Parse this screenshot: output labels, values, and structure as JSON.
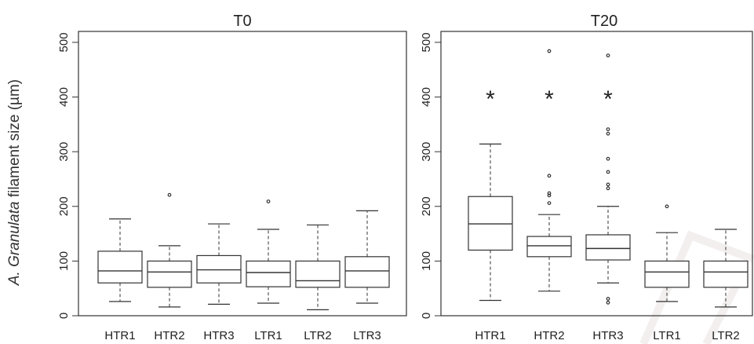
{
  "figure": {
    "ylabel_italic": "A. Granulata",
    "ylabel_rest": " filament size (µm)"
  },
  "chart_data": [
    {
      "type": "box",
      "title": "T0",
      "ylabel": "A. Granulata filament size (µm)",
      "ylim": [
        0,
        520
      ],
      "yticks": [
        0,
        100,
        200,
        300,
        400,
        500
      ],
      "categories": [
        "HTR1",
        "HTR2",
        "HTR3",
        "LTR1",
        "LTR2",
        "LTR3"
      ],
      "boxes": [
        {
          "low": 26,
          "q1": 60,
          "median": 82,
          "q3": 118,
          "high": 177,
          "outliers": [],
          "star": false
        },
        {
          "low": 16,
          "q1": 52,
          "median": 80,
          "q3": 100,
          "high": 128,
          "outliers": [
            221
          ],
          "star": false
        },
        {
          "low": 21,
          "q1": 60,
          "median": 84,
          "q3": 110,
          "high": 168,
          "outliers": [],
          "star": false
        },
        {
          "low": 23,
          "q1": 53,
          "median": 79,
          "q3": 100,
          "high": 158,
          "outliers": [
            209
          ],
          "star": false
        },
        {
          "low": 11,
          "q1": 52,
          "median": 64,
          "q3": 100,
          "high": 166,
          "outliers": [],
          "star": false
        },
        {
          "low": 23,
          "q1": 52,
          "median": 82,
          "q3": 108,
          "high": 192,
          "outliers": [],
          "star": false
        }
      ],
      "grid": false
    },
    {
      "type": "box",
      "title": "T20",
      "ylim": [
        0,
        520
      ],
      "yticks": [
        0,
        100,
        200,
        300,
        400,
        500
      ],
      "categories": [
        "HTR1",
        "HTR2",
        "HTR3",
        "LTR1",
        "LTR2"
      ],
      "boxes": [
        {
          "low": 28,
          "q1": 120,
          "median": 168,
          "q3": 218,
          "high": 314,
          "outliers": [],
          "star": true
        },
        {
          "low": 45,
          "q1": 108,
          "median": 128,
          "q3": 145,
          "high": 185,
          "outliers": [
            206,
            220,
            224,
            256,
            484
          ],
          "star": true
        },
        {
          "low": 60,
          "q1": 102,
          "median": 123,
          "q3": 148,
          "high": 200,
          "outliers": [
            24,
            31,
            233,
            240,
            263,
            287,
            333,
            341,
            476
          ],
          "star": true
        },
        {
          "low": 26,
          "q1": 52,
          "median": 80,
          "q3": 100,
          "high": 152,
          "outliers": [
            200
          ],
          "star": false
        },
        {
          "low": 16,
          "q1": 52,
          "median": 80,
          "q3": 100,
          "high": 158,
          "outliers": [],
          "star": false
        }
      ],
      "star_symbol": "*",
      "grid": false
    }
  ]
}
